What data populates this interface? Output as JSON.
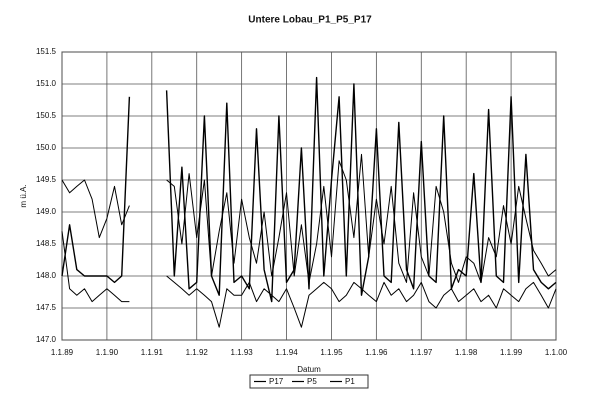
{
  "chart_data": {
    "type": "line",
    "title": "Untere Lobau_P1_P5_P17",
    "x_label": "Datum",
    "y_label": "m ü.A.",
    "x": [
      1989,
      1989.17,
      1989.33,
      1989.5,
      1989.67,
      1989.83,
      1990,
      1990.17,
      1990.33,
      1990.5,
      1990.67,
      1990.83,
      1991,
      1991.17,
      1991.33,
      1991.5,
      1991.67,
      1991.83,
      1992,
      1992.17,
      1992.33,
      1992.5,
      1992.67,
      1992.83,
      1993,
      1993.17,
      1993.33,
      1993.5,
      1993.67,
      1993.83,
      1994,
      1994.17,
      1994.33,
      1994.5,
      1994.67,
      1994.83,
      1995,
      1995.17,
      1995.33,
      1995.5,
      1995.67,
      1995.83,
      1996,
      1996.17,
      1996.33,
      1996.5,
      1996.67,
      1996.83,
      1997,
      1997.17,
      1997.33,
      1997.5,
      1997.67,
      1997.83,
      1998,
      1998.17,
      1998.33,
      1998.5,
      1998.67,
      1998.83,
      1999,
      1999.17,
      1999.33,
      1999.5,
      1999.67,
      1999.83,
      2000
    ],
    "series": [
      {
        "name": "P17",
        "color": "#000000",
        "values": [
          149.5,
          149.3,
          149.4,
          149.5,
          149.2,
          148.6,
          148.9,
          149.4,
          148.8,
          149.1,
          null,
          null,
          null,
          null,
          149.5,
          149.4,
          148.5,
          149.6,
          148.6,
          149.5,
          148.0,
          148.7,
          149.3,
          148.2,
          149.2,
          148.6,
          148.2,
          149.0,
          148.0,
          148.6,
          149.3,
          148.0,
          148.8,
          147.9,
          148.5,
          149.4,
          148.3,
          149.8,
          149.5,
          148.6,
          149.9,
          148.3,
          149.2,
          148.5,
          149.4,
          148.2,
          147.9,
          149.3,
          148.3,
          148.0,
          149.4,
          149.0,
          148.2,
          147.9,
          148.3,
          148.2,
          147.9,
          148.6,
          148.3,
          149.1,
          148.5,
          149.4,
          148.9,
          148.4,
          148.2,
          148.0,
          148.1
        ]
      },
      {
        "name": "P5",
        "color": "#000000",
        "values": [
          148.0,
          148.8,
          148.1,
          148.0,
          148.0,
          148.0,
          148.0,
          147.9,
          148.0,
          150.8,
          null,
          null,
          null,
          null,
          150.9,
          148.0,
          149.7,
          147.8,
          147.9,
          150.5,
          148.0,
          147.7,
          150.7,
          147.9,
          148.0,
          147.8,
          150.3,
          148.1,
          147.6,
          150.5,
          147.9,
          148.1,
          150.0,
          147.8,
          151.1,
          148.0,
          149.5,
          150.8,
          148.0,
          151.0,
          147.7,
          148.3,
          150.3,
          148.0,
          147.9,
          150.4,
          148.1,
          147.8,
          150.1,
          148.0,
          147.9,
          150.5,
          147.8,
          148.1,
          148.0,
          149.6,
          147.9,
          150.6,
          148.0,
          147.9,
          150.8,
          147.9,
          149.9,
          148.1,
          147.9,
          147.8,
          147.9
        ]
      },
      {
        "name": "P1",
        "color": "#000000",
        "values": [
          148.7,
          147.8,
          147.7,
          147.8,
          147.6,
          147.7,
          147.8,
          147.7,
          147.6,
          147.6,
          null,
          null,
          null,
          null,
          148.0,
          147.9,
          147.8,
          147.7,
          147.8,
          147.7,
          147.6,
          147.2,
          147.8,
          147.7,
          147.7,
          147.9,
          147.6,
          147.8,
          147.7,
          147.6,
          147.8,
          147.5,
          147.2,
          147.7,
          147.8,
          147.9,
          147.8,
          147.6,
          147.7,
          147.9,
          147.8,
          147.7,
          147.6,
          147.9,
          147.7,
          147.8,
          147.6,
          147.7,
          147.9,
          147.6,
          147.5,
          147.7,
          147.8,
          147.6,
          147.7,
          147.8,
          147.6,
          147.7,
          147.5,
          147.8,
          147.7,
          147.6,
          147.8,
          147.9,
          147.7,
          147.5,
          147.8
        ]
      }
    ],
    "xlim": [
      1989,
      2000
    ],
    "xticks": [
      {
        "value": 1989,
        "label": "1.1.89"
      },
      {
        "value": 1990,
        "label": "1.1.90"
      },
      {
        "value": 1991,
        "label": "1.1.91"
      },
      {
        "value": 1992,
        "label": "1.1.92"
      },
      {
        "value": 1993,
        "label": "1.1.93"
      },
      {
        "value": 1994,
        "label": "1.1.94"
      },
      {
        "value": 1995,
        "label": "1.1.95"
      },
      {
        "value": 1996,
        "label": "1.1.96"
      },
      {
        "value": 1997,
        "label": "1.1.97"
      },
      {
        "value": 1998,
        "label": "1.1.98"
      },
      {
        "value": 1999,
        "label": "1.1.99"
      },
      {
        "value": 2000,
        "label": "1.1.00"
      }
    ],
    "ylim": [
      147.0,
      151.5
    ],
    "yticks": [
      {
        "value": 147,
        "label": "147.0"
      },
      {
        "value": 147.5,
        "label": "147.5"
      },
      {
        "value": 148,
        "label": "148.0"
      },
      {
        "value": 148.5,
        "label": "148.5"
      },
      {
        "value": 149,
        "label": "149.0"
      },
      {
        "value": 149.5,
        "label": "149.5"
      },
      {
        "value": 150,
        "label": "150.0"
      },
      {
        "value": 150.5,
        "label": "150.5"
      },
      {
        "value": 151,
        "label": "151.0"
      },
      {
        "value": 151.5,
        "label": "151.5"
      }
    ],
    "grid": true,
    "legend": "bottom"
  }
}
